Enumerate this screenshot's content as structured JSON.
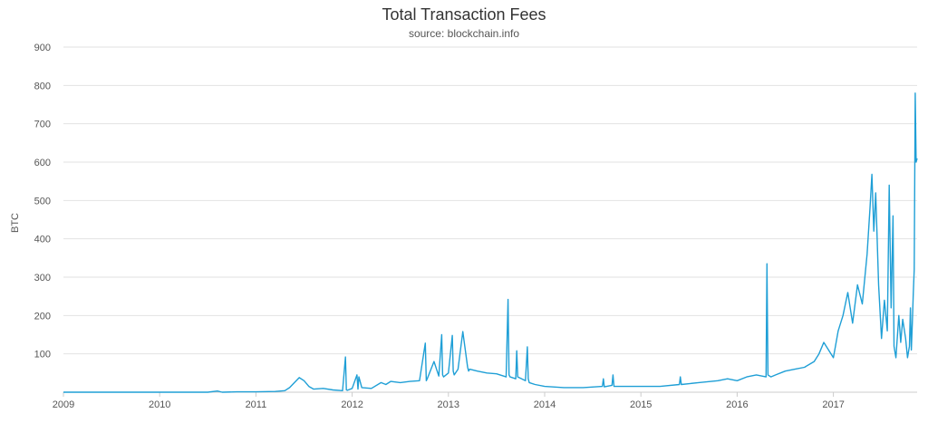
{
  "chart_data": {
    "type": "line",
    "title": "Total Transaction Fees",
    "subtitle": "source: blockchain.info",
    "xlabel": "",
    "ylabel": "BTC",
    "xlim": [
      2009.0,
      2017.87
    ],
    "ylim": [
      0,
      900
    ],
    "x_ticks": [
      2009,
      2010,
      2011,
      2012,
      2013,
      2014,
      2015,
      2016,
      2017
    ],
    "x_tick_labels": [
      "2009",
      "2010",
      "2011",
      "2012",
      "2013",
      "2014",
      "2015",
      "2016",
      "2017"
    ],
    "y_ticks": [
      100,
      200,
      300,
      400,
      500,
      600,
      700,
      800,
      900
    ],
    "y_tick_labels": [
      "100",
      "200",
      "300",
      "400",
      "500",
      "600",
      "700",
      "800",
      "900"
    ],
    "grid": true,
    "legend": false,
    "series": [
      {
        "color": "#1f9fd6",
        "x": [
          2009.0,
          2009.5,
          2010.0,
          2010.5,
          2010.6,
          2010.65,
          2010.8,
          2011.0,
          2011.2,
          2011.3,
          2011.35,
          2011.4,
          2011.45,
          2011.5,
          2011.55,
          2011.6,
          2011.7,
          2011.8,
          2011.9,
          2011.93,
          2011.94,
          2011.95,
          2012.0,
          2012.05,
          2012.06,
          2012.07,
          2012.1,
          2012.2,
          2012.3,
          2012.35,
          2012.4,
          2012.5,
          2012.6,
          2012.7,
          2012.76,
          2012.77,
          2012.78,
          2012.85,
          2012.9,
          2012.93,
          2012.94,
          2012.95,
          2013.0,
          2013.04,
          2013.05,
          2013.06,
          2013.1,
          2013.15,
          2013.2,
          2013.21,
          2013.22,
          2013.3,
          2013.4,
          2013.5,
          2013.6,
          2013.62,
          2013.63,
          2013.64,
          2013.7,
          2013.71,
          2013.72,
          2013.8,
          2013.82,
          2013.83,
          2013.84,
          2013.9,
          2014.0,
          2014.2,
          2014.4,
          2014.6,
          2014.61,
          2014.62,
          2014.7,
          2014.71,
          2014.72,
          2014.8,
          2015.0,
          2015.2,
          2015.4,
          2015.41,
          2015.42,
          2015.6,
          2015.8,
          2015.9,
          2016.0,
          2016.1,
          2016.2,
          2016.3,
          2016.31,
          2016.32,
          2016.35,
          2016.4,
          2016.5,
          2016.6,
          2016.7,
          2016.8,
          2016.85,
          2016.9,
          2017.0,
          2017.05,
          2017.1,
          2017.15,
          2017.2,
          2017.25,
          2017.3,
          2017.35,
          2017.38,
          2017.4,
          2017.42,
          2017.44,
          2017.47,
          2017.5,
          2017.53,
          2017.56,
          2017.58,
          2017.6,
          2017.62,
          2017.63,
          2017.65,
          2017.68,
          2017.7,
          2017.72,
          2017.75,
          2017.77,
          2017.79,
          2017.8,
          2017.81,
          2017.82,
          2017.83,
          2017.84,
          2017.85,
          2017.86,
          2017.87
        ],
        "y": [
          0,
          0,
          0,
          0,
          3,
          0,
          1,
          1,
          2,
          4,
          12,
          25,
          38,
          30,
          15,
          8,
          10,
          6,
          4,
          92,
          6,
          5,
          10,
          45,
          8,
          40,
          12,
          10,
          25,
          20,
          28,
          25,
          28,
          30,
          128,
          30,
          35,
          80,
          42,
          150,
          45,
          40,
          50,
          148,
          55,
          45,
          60,
          158,
          65,
          55,
          60,
          55,
          50,
          48,
          40,
          242,
          45,
          40,
          35,
          108,
          40,
          30,
          118,
          35,
          25,
          20,
          15,
          12,
          12,
          15,
          35,
          14,
          18,
          45,
          15,
          15,
          15,
          15,
          20,
          40,
          20,
          25,
          30,
          35,
          30,
          40,
          45,
          40,
          335,
          45,
          40,
          45,
          55,
          60,
          65,
          80,
          100,
          130,
          90,
          160,
          200,
          260,
          180,
          280,
          230,
          360,
          480,
          568,
          420,
          520,
          280,
          140,
          240,
          160,
          540,
          220,
          460,
          120,
          90,
          200,
          130,
          190,
          140,
          90,
          120,
          220,
          110,
          180,
          260,
          320,
          780,
          600,
          610
        ]
      }
    ]
  }
}
